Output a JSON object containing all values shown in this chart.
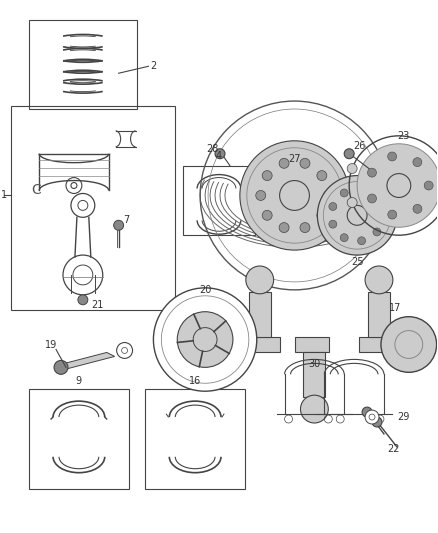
{
  "bg_color": "#ffffff",
  "lc": "#444444",
  "lw": 0.8,
  "figsize": [
    4.38,
    5.33
  ],
  "dpi": 100,
  "gray1": "#aaaaaa",
  "gray2": "#cccccc",
  "gray3": "#888888",
  "gray4": "#666666",
  "gray5": "#dddddd"
}
